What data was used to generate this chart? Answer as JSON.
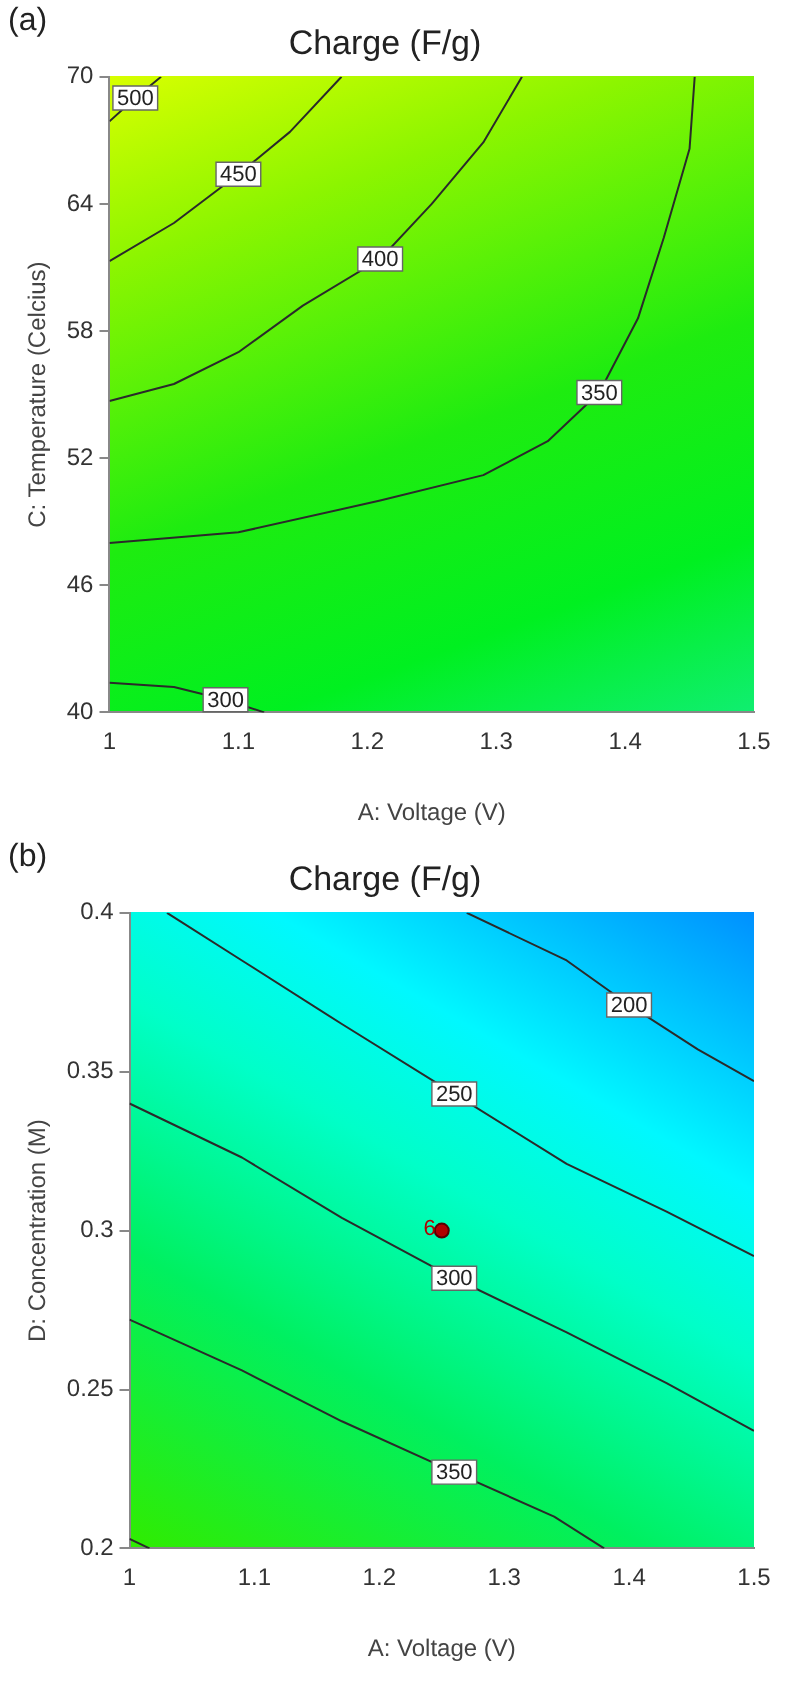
{
  "chart_data": [
    {
      "type": "line",
      "title": "Charge (F/g)",
      "xlabel": "A: Voltage (V)",
      "ylabel": "C: Temperature (Celcius)",
      "annotations": [
        "(a)"
      ],
      "xlim": [
        1,
        1.5
      ],
      "xticks": [
        1,
        1.1,
        1.2,
        1.3,
        1.4,
        1.5
      ],
      "ylim": [
        40,
        70
      ],
      "yticks": [
        40,
        46,
        52,
        58,
        64,
        70
      ],
      "grid": false,
      "legend": false,
      "marker": "none",
      "line_style": "solid",
      "series": [
        {
          "name": "500",
          "color": "#2a2a2a",
          "x": [
            1,
            1.02,
            1.04
          ],
          "values": [
            67.9,
            69,
            70
          ]
        },
        {
          "name": "450",
          "color": "#2a2a2a",
          "x": [
            1,
            1.05,
            1.1,
            1.14,
            1.18
          ],
          "values": [
            61.3,
            63.1,
            65.4,
            67.4,
            70
          ]
        },
        {
          "name": "400",
          "color": "#2a2a2a",
          "x": [
            1,
            1.05,
            1.1,
            1.15,
            1.21,
            1.25,
            1.29,
            1.32
          ],
          "values": [
            54.7,
            55.5,
            57.0,
            59.2,
            61.4,
            64.0,
            66.9,
            70
          ]
        },
        {
          "name": "350",
          "color": "#2a2a2a",
          "x": [
            1,
            1.1,
            1.21,
            1.29,
            1.34,
            1.38,
            1.41,
            1.43,
            1.45,
            1.454
          ],
          "values": [
            48.0,
            48.5,
            50.0,
            51.2,
            52.8,
            55.1,
            58.6,
            62.4,
            66.6,
            70
          ]
        },
        {
          "name": "300",
          "color": "#2a2a2a",
          "x": [
            1,
            1.05,
            1.09,
            1.12
          ],
          "values": [
            41.4,
            41.2,
            40.6,
            40
          ]
        }
      ]
    },
    {
      "type": "line",
      "title": "Charge (F/g)",
      "xlabel": "A: Voltage (V)",
      "ylabel": "D: Concentration (M)",
      "annotations": [
        "(b)"
      ],
      "xlim": [
        1,
        1.5
      ],
      "xticks": [
        1,
        1.1,
        1.2,
        1.3,
        1.4,
        1.5
      ],
      "ylim": [
        0.2,
        0.4
      ],
      "yticks": [
        0.2,
        0.25,
        0.3,
        0.35,
        0.4
      ],
      "grid": false,
      "legend": false,
      "marker": "none",
      "line_style": "solid",
      "series": [
        {
          "name": "200",
          "color": "#2a2a2a",
          "x": [
            1.27,
            1.35,
            1.4,
            1.455,
            1.5
          ],
          "values": [
            0.4,
            0.385,
            0.371,
            0.357,
            0.347
          ]
        },
        {
          "name": "250",
          "color": "#2a2a2a",
          "x": [
            1.03,
            1.09,
            1.17,
            1.26,
            1.35,
            1.43,
            1.5
          ],
          "values": [
            0.4,
            0.385,
            0.365,
            0.343,
            0.321,
            0.306,
            0.292
          ]
        },
        {
          "name": "300",
          "color": "#2a2a2a",
          "x": [
            1,
            1.09,
            1.17,
            1.26,
            1.35,
            1.43,
            1.5
          ],
          "values": [
            0.34,
            0.323,
            0.304,
            0.285,
            0.268,
            0.252,
            0.237
          ]
        },
        {
          "name": "350",
          "color": "#2a2a2a",
          "x": [
            1,
            1.09,
            1.17,
            1.26,
            1.34,
            1.38
          ],
          "values": [
            0.272,
            0.256,
            0.24,
            0.224,
            0.21,
            0.2
          ]
        },
        {
          "color": "#2a2a2a",
          "x": [
            1,
            1.016
          ],
          "values": [
            0.203,
            0.2
          ]
        },
        {
          "type": "scatter",
          "name": "6",
          "color": "#b00000",
          "marker": "circle",
          "x": [
            1.25
          ],
          "values": [
            0.3
          ]
        }
      ]
    }
  ]
}
